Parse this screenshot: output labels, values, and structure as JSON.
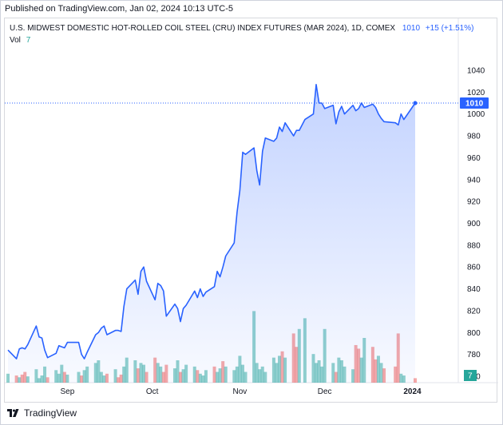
{
  "published": "Published on TradingView.com, Jan 02, 2024 10:13 UTC-5",
  "legend": {
    "title": "U.S. MIDWEST DOMESTIC HOT-ROLLED COIL STEEL (CRU) INDEX FUTURES (MAR 2024), 1D, COMEX",
    "last_price": "1010",
    "change": "+15 (+1.51%)",
    "vol_label": "Vol",
    "vol_value": "7"
  },
  "footer": {
    "brand": "TradingView",
    "logo_icon": "tradingview-logo-icon"
  },
  "colors": {
    "line": "#2962ff",
    "area_top": "#2962ff",
    "volume_up": "#26a69a",
    "volume_down": "#ef5350",
    "price_tag_bg": "#2962ff",
    "vol_tag_bg": "#26a69a"
  },
  "chart_data": {
    "type": "line",
    "title": "U.S. MIDWEST DOMESTIC HOT-ROLLED COIL STEEL (CRU) INDEX FUTURES (MAR 2024), 1D, COMEX",
    "price_axis": {
      "min": 755,
      "max": 1045,
      "ticks": [
        760,
        780,
        800,
        820,
        840,
        860,
        880,
        900,
        920,
        940,
        960,
        980,
        1000,
        1020,
        1040
      ],
      "last_value": 1010,
      "last_label": "1010"
    },
    "volume_axis": {
      "last_label": "7"
    },
    "time_axis": {
      "start": "2023-08-11",
      "end": "2024-01-02",
      "labels": [
        {
          "date": "2023-09-01",
          "label": "Sep"
        },
        {
          "date": "2023-10-01",
          "label": "Oct"
        },
        {
          "date": "2023-11-01",
          "label": "Nov"
        },
        {
          "date": "2023-12-01",
          "label": "Dec"
        },
        {
          "date": "2024-01-01",
          "label": "2024"
        }
      ]
    },
    "series": [
      {
        "points": [
          [
            "2023-08-11",
            784
          ],
          [
            "2023-08-14",
            776
          ],
          [
            "2023-08-15",
            785
          ],
          [
            "2023-08-16",
            786
          ],
          [
            "2023-08-17",
            785
          ],
          [
            "2023-08-18",
            789
          ],
          [
            "2023-08-21",
            806
          ],
          [
            "2023-08-22",
            796
          ],
          [
            "2023-08-23",
            795
          ],
          [
            "2023-08-24",
            784
          ],
          [
            "2023-08-25",
            777
          ],
          [
            "2023-08-28",
            781
          ],
          [
            "2023-08-29",
            788
          ],
          [
            "2023-08-30",
            787
          ],
          [
            "2023-08-31",
            786
          ],
          [
            "2023-09-01",
            791
          ],
          [
            "2023-09-05",
            791
          ],
          [
            "2023-09-06",
            780
          ],
          [
            "2023-09-07",
            776
          ],
          [
            "2023-09-08",
            782
          ],
          [
            "2023-09-11",
            798
          ],
          [
            "2023-09-12",
            800
          ],
          [
            "2023-09-13",
            804
          ],
          [
            "2023-09-14",
            806
          ],
          [
            "2023-09-15",
            798
          ],
          [
            "2023-09-18",
            802
          ],
          [
            "2023-09-19",
            802
          ],
          [
            "2023-09-20",
            801
          ],
          [
            "2023-09-21",
            824
          ],
          [
            "2023-09-22",
            840
          ],
          [
            "2023-09-25",
            848
          ],
          [
            "2023-09-26",
            835
          ],
          [
            "2023-09-27",
            856
          ],
          [
            "2023-09-28",
            860
          ],
          [
            "2023-09-29",
            847
          ],
          [
            "2023-10-02",
            830
          ],
          [
            "2023-10-03",
            845
          ],
          [
            "2023-10-04",
            843
          ],
          [
            "2023-10-05",
            838
          ],
          [
            "2023-10-06",
            815
          ],
          [
            "2023-10-09",
            826
          ],
          [
            "2023-10-10",
            822
          ],
          [
            "2023-10-11",
            810
          ],
          [
            "2023-10-12",
            822
          ],
          [
            "2023-10-13",
            825
          ],
          [
            "2023-10-16",
            838
          ],
          [
            "2023-10-17",
            832
          ],
          [
            "2023-10-18",
            840
          ],
          [
            "2023-10-19",
            833
          ],
          [
            "2023-10-20",
            837
          ],
          [
            "2023-10-23",
            842
          ],
          [
            "2023-10-24",
            856
          ],
          [
            "2023-10-25",
            851
          ],
          [
            "2023-10-26",
            860
          ],
          [
            "2023-10-27",
            870
          ],
          [
            "2023-10-30",
            882
          ],
          [
            "2023-10-31",
            910
          ],
          [
            "2023-11-01",
            930
          ],
          [
            "2023-11-02",
            965
          ],
          [
            "2023-11-03",
            963
          ],
          [
            "2023-11-06",
            969
          ],
          [
            "2023-11-07",
            948
          ],
          [
            "2023-11-08",
            935
          ],
          [
            "2023-11-09",
            966
          ],
          [
            "2023-11-10",
            978
          ],
          [
            "2023-11-13",
            975
          ],
          [
            "2023-11-14",
            978
          ],
          [
            "2023-11-15",
            988
          ],
          [
            "2023-11-16",
            984
          ],
          [
            "2023-11-17",
            992
          ],
          [
            "2023-11-20",
            980
          ],
          [
            "2023-11-21",
            985
          ],
          [
            "2023-11-22",
            985
          ],
          [
            "2023-11-24",
            995
          ],
          [
            "2023-11-27",
            1000
          ],
          [
            "2023-11-28",
            1027
          ],
          [
            "2023-11-29",
            1010
          ],
          [
            "2023-11-30",
            1010
          ],
          [
            "2023-12-01",
            1005
          ],
          [
            "2023-12-04",
            1008
          ],
          [
            "2023-12-05",
            991
          ],
          [
            "2023-12-06",
            1002
          ],
          [
            "2023-12-07",
            1007
          ],
          [
            "2023-12-08",
            1000
          ],
          [
            "2023-12-11",
            1008
          ],
          [
            "2023-12-12",
            1003
          ],
          [
            "2023-12-13",
            1005
          ],
          [
            "2023-12-14",
            1010
          ],
          [
            "2023-12-15",
            1006
          ],
          [
            "2023-12-18",
            1009
          ],
          [
            "2023-12-19",
            1006
          ],
          [
            "2023-12-20",
            1000
          ],
          [
            "2023-12-21",
            996
          ],
          [
            "2023-12-22",
            993
          ],
          [
            "2023-12-26",
            992
          ],
          [
            "2023-12-27",
            990
          ],
          [
            "2023-12-28",
            1000
          ],
          [
            "2023-12-29",
            995
          ],
          [
            "2024-01-02",
            1010
          ]
        ]
      }
    ],
    "volume": {
      "relative_scale_max": 100,
      "bars": [
        [
          "2023-08-11",
          10,
          "up"
        ],
        [
          "2023-08-14",
          8,
          "down"
        ],
        [
          "2023-08-15",
          6,
          "up"
        ],
        [
          "2023-08-16",
          9,
          "down"
        ],
        [
          "2023-08-17",
          12,
          "down"
        ],
        [
          "2023-08-18",
          7,
          "up"
        ],
        [
          "2023-08-21",
          15,
          "up"
        ],
        [
          "2023-08-22",
          5,
          "up"
        ],
        [
          "2023-08-23",
          8,
          "up"
        ],
        [
          "2023-08-24",
          18,
          "up"
        ],
        [
          "2023-08-25",
          6,
          "down"
        ],
        [
          "2023-08-28",
          14,
          "up"
        ],
        [
          "2023-08-29",
          10,
          "up"
        ],
        [
          "2023-08-30",
          20,
          "up"
        ],
        [
          "2023-08-31",
          12,
          "down"
        ],
        [
          "2023-09-01",
          9,
          "up"
        ],
        [
          "2023-09-05",
          12,
          "up"
        ],
        [
          "2023-09-06",
          8,
          "down"
        ],
        [
          "2023-09-07",
          14,
          "up"
        ],
        [
          "2023-09-08",
          18,
          "up"
        ],
        [
          "2023-09-11",
          22,
          "up"
        ],
        [
          "2023-09-12",
          25,
          "up"
        ],
        [
          "2023-09-13",
          12,
          "up"
        ],
        [
          "2023-09-14",
          8,
          "up"
        ],
        [
          "2023-09-15",
          10,
          "down"
        ],
        [
          "2023-09-18",
          15,
          "up"
        ],
        [
          "2023-09-19",
          6,
          "down"
        ],
        [
          "2023-09-20",
          9,
          "down"
        ],
        [
          "2023-09-21",
          18,
          "up"
        ],
        [
          "2023-09-22",
          28,
          "up"
        ],
        [
          "2023-09-25",
          25,
          "up"
        ],
        [
          "2023-09-26",
          16,
          "down"
        ],
        [
          "2023-09-27",
          22,
          "up"
        ],
        [
          "2023-09-28",
          20,
          "up"
        ],
        [
          "2023-09-29",
          12,
          "down"
        ],
        [
          "2023-10-02",
          28,
          "down"
        ],
        [
          "2023-10-03",
          22,
          "up"
        ],
        [
          "2023-10-04",
          18,
          "up"
        ],
        [
          "2023-10-05",
          12,
          "down"
        ],
        [
          "2023-10-06",
          20,
          "down"
        ],
        [
          "2023-10-09",
          16,
          "up"
        ],
        [
          "2023-10-10",
          25,
          "up"
        ],
        [
          "2023-10-11",
          12,
          "down"
        ],
        [
          "2023-10-12",
          15,
          "up"
        ],
        [
          "2023-10-13",
          20,
          "up"
        ],
        [
          "2023-10-16",
          18,
          "up"
        ],
        [
          "2023-10-17",
          14,
          "down"
        ],
        [
          "2023-10-18",
          10,
          "up"
        ],
        [
          "2023-10-19",
          8,
          "up"
        ],
        [
          "2023-10-20",
          14,
          "up"
        ],
        [
          "2023-10-23",
          18,
          "down"
        ],
        [
          "2023-10-24",
          12,
          "up"
        ],
        [
          "2023-10-25",
          16,
          "up"
        ],
        [
          "2023-10-26",
          24,
          "down"
        ],
        [
          "2023-10-27",
          18,
          "up"
        ],
        [
          "2023-10-30",
          14,
          "up"
        ],
        [
          "2023-10-31",
          18,
          "up"
        ],
        [
          "2023-11-01",
          30,
          "up"
        ],
        [
          "2023-11-02",
          20,
          "up"
        ],
        [
          "2023-11-03",
          12,
          "up"
        ],
        [
          "2023-11-06",
          80,
          "up"
        ],
        [
          "2023-11-07",
          22,
          "up"
        ],
        [
          "2023-11-08",
          15,
          "up"
        ],
        [
          "2023-11-09",
          18,
          "up"
        ],
        [
          "2023-11-10",
          12,
          "up"
        ],
        [
          "2023-11-13",
          28,
          "up"
        ],
        [
          "2023-11-14",
          22,
          "up"
        ],
        [
          "2023-11-15",
          30,
          "up"
        ],
        [
          "2023-11-16",
          35,
          "down"
        ],
        [
          "2023-11-17",
          28,
          "up"
        ],
        [
          "2023-11-20",
          55,
          "down"
        ],
        [
          "2023-11-21",
          40,
          "down"
        ],
        [
          "2023-11-22",
          60,
          "up"
        ],
        [
          "2023-11-24",
          72,
          "up"
        ],
        [
          "2023-11-27",
          32,
          "up"
        ],
        [
          "2023-11-28",
          22,
          "up"
        ],
        [
          "2023-11-29",
          25,
          "up"
        ],
        [
          "2023-11-30",
          18,
          "up"
        ],
        [
          "2023-12-01",
          60,
          "up"
        ],
        [
          "2023-12-04",
          22,
          "up"
        ],
        [
          "2023-12-05",
          12,
          "down"
        ],
        [
          "2023-12-06",
          28,
          "up"
        ],
        [
          "2023-12-07",
          25,
          "up"
        ],
        [
          "2023-12-08",
          18,
          "up"
        ],
        [
          "2023-12-11",
          15,
          "up"
        ],
        [
          "2023-12-12",
          42,
          "down"
        ],
        [
          "2023-12-13",
          38,
          "down"
        ],
        [
          "2023-12-14",
          28,
          "up"
        ],
        [
          "2023-12-15",
          50,
          "up"
        ],
        [
          "2023-12-18",
          40,
          "down"
        ],
        [
          "2023-12-19",
          26,
          "down"
        ],
        [
          "2023-12-20",
          30,
          "up"
        ],
        [
          "2023-12-21",
          22,
          "up"
        ],
        [
          "2023-12-22",
          16,
          "down"
        ],
        [
          "2023-12-26",
          18,
          "down"
        ],
        [
          "2023-12-27",
          55,
          "down"
        ],
        [
          "2023-12-28",
          10,
          "up"
        ],
        [
          "2023-12-29",
          8,
          "up"
        ],
        [
          "2024-01-02",
          5,
          "down"
        ]
      ]
    }
  }
}
